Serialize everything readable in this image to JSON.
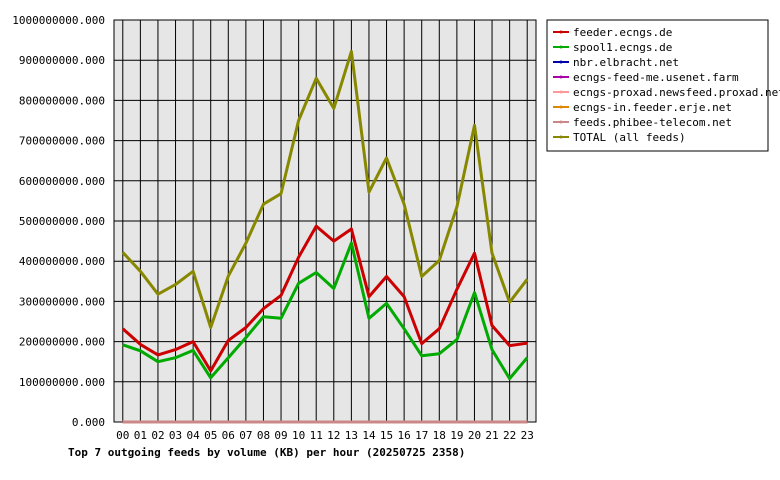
{
  "chart_data": {
    "type": "line",
    "title": "Top 7 outgoing feeds by volume (KB) per hour (20250725 2358)",
    "x": [
      "00",
      "01",
      "02",
      "03",
      "04",
      "05",
      "06",
      "07",
      "08",
      "09",
      "10",
      "11",
      "12",
      "13",
      "14",
      "15",
      "16",
      "17",
      "18",
      "19",
      "20",
      "21",
      "22",
      "23"
    ],
    "y_ticks": [
      "0.000",
      "100000000.000",
      "200000000.000",
      "300000000.000",
      "400000000.000",
      "500000000.000",
      "600000000.000",
      "700000000.000",
      "800000000.000",
      "900000000.000",
      "1000000000.000"
    ],
    "ylim": [
      0,
      1000000000
    ],
    "grid": true,
    "legend_position": "top-right",
    "series": [
      {
        "name": "feeder.ecngs.de",
        "color": "#cc0000",
        "values": [
          232000000,
          193000000,
          167000000,
          180000000,
          200000000,
          127000000,
          203000000,
          235000000,
          282000000,
          315000000,
          410000000,
          487000000,
          450000000,
          480000000,
          312000000,
          362000000,
          312000000,
          195000000,
          232000000,
          330000000,
          420000000,
          240000000,
          190000000,
          196000000
        ]
      },
      {
        "name": "spool1.ecngs.de",
        "color": "#00aa00",
        "values": [
          192000000,
          177000000,
          150000000,
          160000000,
          178000000,
          110000000,
          160000000,
          210000000,
          262000000,
          258000000,
          345000000,
          372000000,
          332000000,
          445000000,
          258000000,
          295000000,
          232000000,
          165000000,
          170000000,
          205000000,
          322000000,
          180000000,
          108000000,
          160000000
        ]
      },
      {
        "name": "nbr.elbracht.net",
        "color": "#0000aa",
        "values": [
          0,
          0,
          0,
          0,
          0,
          0,
          0,
          0,
          0,
          0,
          0,
          0,
          0,
          0,
          0,
          0,
          0,
          0,
          0,
          0,
          0,
          0,
          0,
          0
        ]
      },
      {
        "name": "ecngs-feed-me.usenet.farm",
        "color": "#aa00aa",
        "values": [
          0,
          0,
          0,
          0,
          0,
          0,
          0,
          0,
          0,
          0,
          0,
          0,
          0,
          0,
          0,
          0,
          0,
          0,
          0,
          0,
          0,
          0,
          0,
          0
        ]
      },
      {
        "name": "ecngs-proxad.newsfeed.proxad.net",
        "color": "#ff9999",
        "values": [
          0,
          0,
          0,
          0,
          0,
          0,
          0,
          0,
          0,
          0,
          0,
          0,
          0,
          0,
          0,
          0,
          0,
          0,
          0,
          0,
          0,
          0,
          0,
          0
        ]
      },
      {
        "name": "ecngs-in.feeder.erje.net",
        "color": "#dd8800",
        "values": [
          0,
          0,
          0,
          0,
          0,
          0,
          0,
          0,
          0,
          0,
          0,
          0,
          0,
          0,
          0,
          0,
          0,
          0,
          0,
          0,
          0,
          0,
          0,
          0
        ]
      },
      {
        "name": "feeds.phibee-telecom.net",
        "color": "#cc8888",
        "values": [
          0,
          0,
          0,
          0,
          0,
          0,
          0,
          0,
          0,
          0,
          0,
          0,
          0,
          0,
          0,
          0,
          0,
          0,
          0,
          0,
          0,
          0,
          0,
          0
        ]
      },
      {
        "name": "TOTAL (all feeds)",
        "color": "#888800",
        "values": [
          422000000,
          375000000,
          318000000,
          342000000,
          375000000,
          235000000,
          363000000,
          445000000,
          542000000,
          568000000,
          750000000,
          855000000,
          780000000,
          922000000,
          572000000,
          657000000,
          542000000,
          362000000,
          402000000,
          535000000,
          738000000,
          420000000,
          298000000,
          355000000
        ]
      }
    ]
  }
}
